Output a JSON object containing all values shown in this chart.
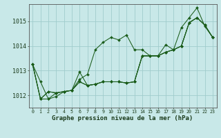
{
  "title": "Graphe pression niveau de la mer (hPa)",
  "bg_color": "#c8e8e8",
  "grid_color": "#a0cccc",
  "line_color": "#1a5c1a",
  "ylim": [
    1011.5,
    1015.7
  ],
  "yticks": [
    1012,
    1013,
    1014,
    1015
  ],
  "x_ticks": [
    0,
    1,
    2,
    3,
    4,
    5,
    6,
    7,
    8,
    9,
    10,
    11,
    12,
    13,
    14,
    15,
    16,
    17,
    18,
    19,
    20,
    21,
    22,
    23
  ],
  "series": [
    [
      1013.25,
      1012.55,
      1011.85,
      1011.95,
      1012.15,
      1012.2,
      1012.65,
      1012.85,
      1013.85,
      1014.15,
      1014.35,
      1014.25,
      1014.45,
      1013.85,
      1013.85,
      1013.6,
      1013.6,
      1014.05,
      1013.85,
      1014.75,
      1015.15,
      1015.55,
      1014.8,
      1014.35
    ],
    [
      1013.25,
      1011.85,
      1011.85,
      1012.1,
      1012.15,
      1012.2,
      1012.55,
      1012.4,
      1012.45,
      1012.55,
      1012.55,
      1012.55,
      1012.5,
      1012.55,
      1013.6,
      1013.6,
      1013.6,
      1013.75,
      1013.85,
      1014.0,
      1014.95,
      1015.15,
      1014.85,
      1014.35
    ],
    [
      1013.25,
      1011.85,
      1012.15,
      1012.1,
      1012.15,
      1012.2,
      1012.55,
      1012.4,
      1012.45,
      1012.55,
      1012.55,
      1012.55,
      1012.5,
      1012.55,
      1013.6,
      1013.6,
      1013.6,
      1013.75,
      1013.85,
      1014.0,
      1014.95,
      1015.15,
      1014.85,
      1014.35
    ],
    [
      1013.25,
      1011.85,
      1012.15,
      1012.1,
      1012.15,
      1012.2,
      1012.95,
      1012.4,
      1012.45,
      1012.55,
      1012.55,
      1012.55,
      1012.5,
      1012.55,
      1013.6,
      1013.6,
      1013.6,
      1013.75,
      1013.85,
      1014.0,
      1014.95,
      1015.15,
      1014.85,
      1014.35
    ]
  ]
}
